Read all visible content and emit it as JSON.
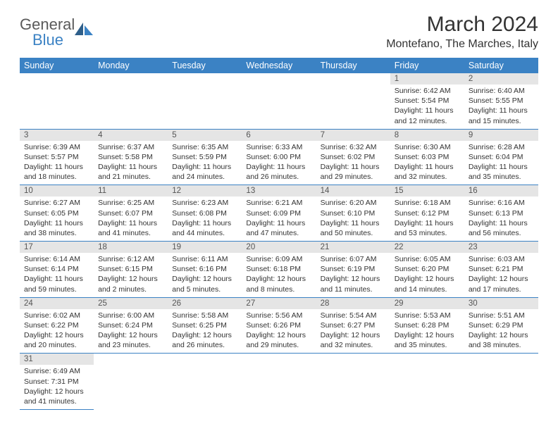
{
  "logo": {
    "word1": "General",
    "word2": "Blue"
  },
  "title": "March 2024",
  "location": "Montefano, The Marches, Italy",
  "colors": {
    "header_bg": "#3b82c4",
    "header_text": "#ffffff",
    "daynum_bg": "#e5e5e5",
    "cell_border": "#3b82c4",
    "text": "#333333",
    "logo_gray": "#5a5a5a",
    "logo_blue": "#3b82c4"
  },
  "weekdays": [
    "Sunday",
    "Monday",
    "Tuesday",
    "Wednesday",
    "Thursday",
    "Friday",
    "Saturday"
  ],
  "weeks": [
    [
      null,
      null,
      null,
      null,
      null,
      {
        "n": "1",
        "sunrise": "6:42 AM",
        "sunset": "5:54 PM",
        "daylight": "11 hours and 12 minutes."
      },
      {
        "n": "2",
        "sunrise": "6:40 AM",
        "sunset": "5:55 PM",
        "daylight": "11 hours and 15 minutes."
      }
    ],
    [
      {
        "n": "3",
        "sunrise": "6:39 AM",
        "sunset": "5:57 PM",
        "daylight": "11 hours and 18 minutes."
      },
      {
        "n": "4",
        "sunrise": "6:37 AM",
        "sunset": "5:58 PM",
        "daylight": "11 hours and 21 minutes."
      },
      {
        "n": "5",
        "sunrise": "6:35 AM",
        "sunset": "5:59 PM",
        "daylight": "11 hours and 24 minutes."
      },
      {
        "n": "6",
        "sunrise": "6:33 AM",
        "sunset": "6:00 PM",
        "daylight": "11 hours and 26 minutes."
      },
      {
        "n": "7",
        "sunrise": "6:32 AM",
        "sunset": "6:02 PM",
        "daylight": "11 hours and 29 minutes."
      },
      {
        "n": "8",
        "sunrise": "6:30 AM",
        "sunset": "6:03 PM",
        "daylight": "11 hours and 32 minutes."
      },
      {
        "n": "9",
        "sunrise": "6:28 AM",
        "sunset": "6:04 PM",
        "daylight": "11 hours and 35 minutes."
      }
    ],
    [
      {
        "n": "10",
        "sunrise": "6:27 AM",
        "sunset": "6:05 PM",
        "daylight": "11 hours and 38 minutes."
      },
      {
        "n": "11",
        "sunrise": "6:25 AM",
        "sunset": "6:07 PM",
        "daylight": "11 hours and 41 minutes."
      },
      {
        "n": "12",
        "sunrise": "6:23 AM",
        "sunset": "6:08 PM",
        "daylight": "11 hours and 44 minutes."
      },
      {
        "n": "13",
        "sunrise": "6:21 AM",
        "sunset": "6:09 PM",
        "daylight": "11 hours and 47 minutes."
      },
      {
        "n": "14",
        "sunrise": "6:20 AM",
        "sunset": "6:10 PM",
        "daylight": "11 hours and 50 minutes."
      },
      {
        "n": "15",
        "sunrise": "6:18 AM",
        "sunset": "6:12 PM",
        "daylight": "11 hours and 53 minutes."
      },
      {
        "n": "16",
        "sunrise": "6:16 AM",
        "sunset": "6:13 PM",
        "daylight": "11 hours and 56 minutes."
      }
    ],
    [
      {
        "n": "17",
        "sunrise": "6:14 AM",
        "sunset": "6:14 PM",
        "daylight": "11 hours and 59 minutes."
      },
      {
        "n": "18",
        "sunrise": "6:12 AM",
        "sunset": "6:15 PM",
        "daylight": "12 hours and 2 minutes."
      },
      {
        "n": "19",
        "sunrise": "6:11 AM",
        "sunset": "6:16 PM",
        "daylight": "12 hours and 5 minutes."
      },
      {
        "n": "20",
        "sunrise": "6:09 AM",
        "sunset": "6:18 PM",
        "daylight": "12 hours and 8 minutes."
      },
      {
        "n": "21",
        "sunrise": "6:07 AM",
        "sunset": "6:19 PM",
        "daylight": "12 hours and 11 minutes."
      },
      {
        "n": "22",
        "sunrise": "6:05 AM",
        "sunset": "6:20 PM",
        "daylight": "12 hours and 14 minutes."
      },
      {
        "n": "23",
        "sunrise": "6:03 AM",
        "sunset": "6:21 PM",
        "daylight": "12 hours and 17 minutes."
      }
    ],
    [
      {
        "n": "24",
        "sunrise": "6:02 AM",
        "sunset": "6:22 PM",
        "daylight": "12 hours and 20 minutes."
      },
      {
        "n": "25",
        "sunrise": "6:00 AM",
        "sunset": "6:24 PM",
        "daylight": "12 hours and 23 minutes."
      },
      {
        "n": "26",
        "sunrise": "5:58 AM",
        "sunset": "6:25 PM",
        "daylight": "12 hours and 26 minutes."
      },
      {
        "n": "27",
        "sunrise": "5:56 AM",
        "sunset": "6:26 PM",
        "daylight": "12 hours and 29 minutes."
      },
      {
        "n": "28",
        "sunrise": "5:54 AM",
        "sunset": "6:27 PM",
        "daylight": "12 hours and 32 minutes."
      },
      {
        "n": "29",
        "sunrise": "5:53 AM",
        "sunset": "6:28 PM",
        "daylight": "12 hours and 35 minutes."
      },
      {
        "n": "30",
        "sunrise": "5:51 AM",
        "sunset": "6:29 PM",
        "daylight": "12 hours and 38 minutes."
      }
    ],
    [
      {
        "n": "31",
        "sunrise": "6:49 AM",
        "sunset": "7:31 PM",
        "daylight": "12 hours and 41 minutes."
      },
      null,
      null,
      null,
      null,
      null,
      null
    ]
  ],
  "labels": {
    "sunrise": "Sunrise:",
    "sunset": "Sunset:",
    "daylight": "Daylight:"
  }
}
